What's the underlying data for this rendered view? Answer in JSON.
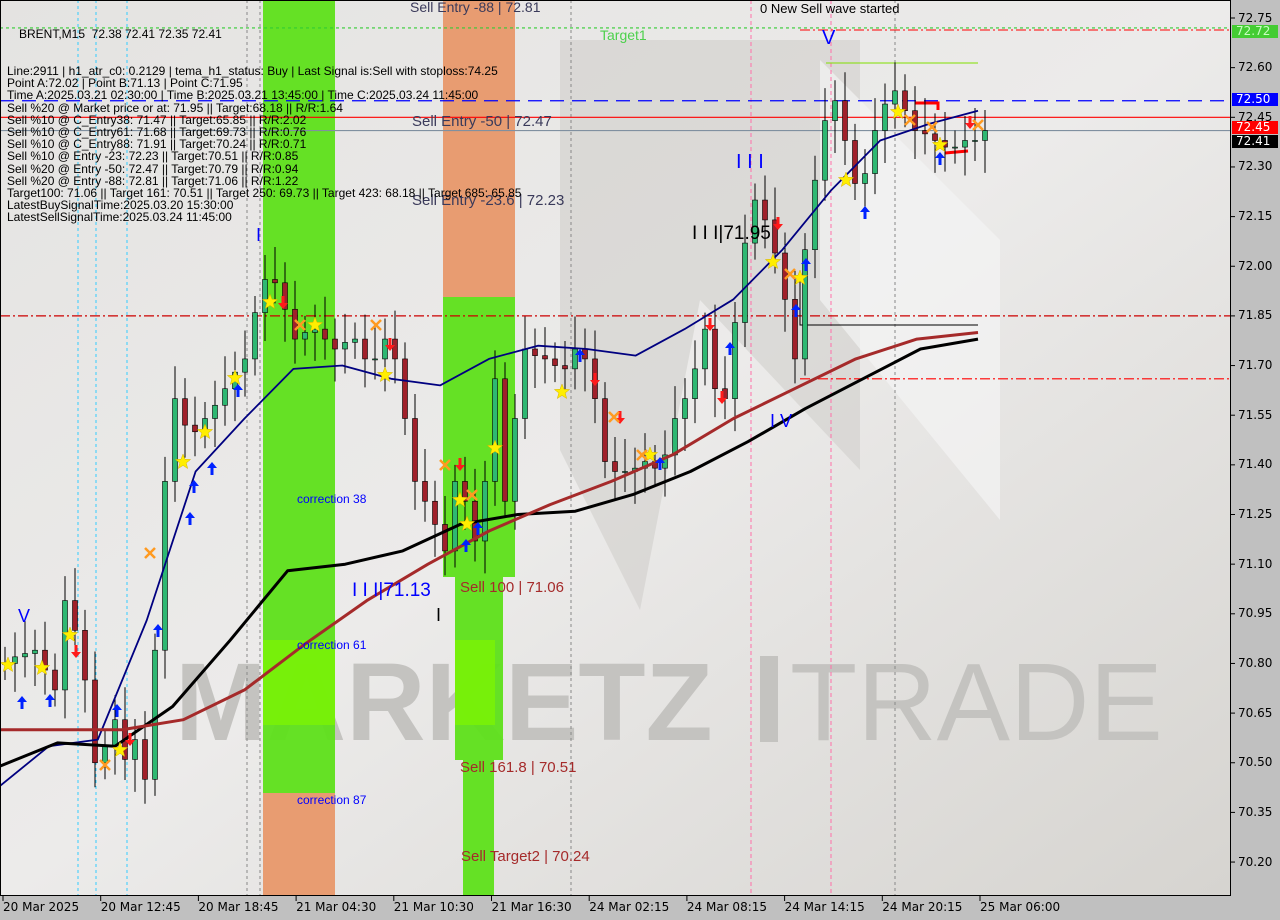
{
  "header": {
    "title": "BRENT,M15  72.38 72.41 72.35 72.41",
    "lines": [
      "Line:2911 | h1_atr_c0: 0.2129 | tema_h1_status: Buy | Last Signal is:Sell with stoploss:74.25",
      "Point A:72.02 | Point B:71.13 | Point C:71.95",
      "Time A:2025.03.21 02:30:00 | Time B:2025.03.21 13:45:00 | Time C:2025.03.24 11:45:00",
      "Sell %20 @ Market price or at: 71.95 || Target:68.18 || R/R:1.64",
      "Sell %10 @ C_Entry38: 71.47 || Target:65.85 || R/R:2.02",
      "Sell %10 @ C_Entry61: 71.68 || Target:69.73 || R/R:0.76",
      "Sell %10 @ C_Entry88: 71.91 || Target:70.24 || R/R:0.71",
      "Sell %10 @ Entry -23: 72.23 || Target:70.51 || R/R:0.85",
      "Sell %20 @ Entry -50: 72.47 || Target:70.79 || R/R:0.94",
      "Sell %20 @ Entry -88: 72.81 || Target:71.06 || R/R:1.22",
      "Target100: 71.06 || Target 161: 70.51 || Target 250: 69.73 || Target 423: 68.18 || Target 685: 65.85",
      "LatestBuySignalTime:2025.03.20 15:30:00",
      "LatestSellSignalTime:2025.03.24 11:45:00"
    ]
  },
  "annotations": {
    "sell_entry_88": "Sell Entry -88 | 72.81",
    "target1": "Target1",
    "sell_entry_50": "Sell Entry -50 | 72.47",
    "sell_entry_236": "Sell Entry -23.6 | 72.23",
    "wave_started": "0 New Sell wave started",
    "wave_v_top": "V",
    "wave_iii_blue": "I I I",
    "wave_iii_point": "I I I|71.95",
    "wave_i_blue": "I",
    "wave_v_left": "V",
    "wave_iv": "I V",
    "wave_iii_b": "I I I|71.13",
    "wave_i_black": "I",
    "sell_100": "Sell 100 | 71.06",
    "sell_1618": "Sell 161.8 | 70.51",
    "sell_target2": "Sell Target2 | 70.24",
    "correction_38": "correction 38",
    "correction_61": "correction 61",
    "correction_87": "correction 87",
    "watermark": "MARKETZ TRADE"
  },
  "price_tags": [
    {
      "value": "72.72",
      "bg": "#44cc33",
      "fg": "#c8ffc0"
    },
    {
      "value": "72.50",
      "bg": "#0000ff",
      "fg": "#ffffff"
    },
    {
      "value": "72.45",
      "bg": "#ff0000",
      "fg": "#ffffff"
    },
    {
      "value": "72.41",
      "bg": "#000000",
      "fg": "#ffffff"
    }
  ],
  "chart_data": {
    "type": "candlestick",
    "symbol": "BRENT",
    "timeframe": "M15",
    "ylim": [
      70.15,
      72.8
    ],
    "y_ticks": [
      "72.75",
      "72.60",
      "72.45",
      "72.30",
      "72.15",
      "72.00",
      "71.85",
      "71.70",
      "71.55",
      "71.40",
      "71.25",
      "71.10",
      "70.95",
      "70.80",
      "70.65",
      "70.50",
      "70.35",
      "70.20"
    ],
    "x_ticks": [
      "20 Mar 2025",
      "20 Mar 12:45",
      "20 Mar 18:45",
      "21 Mar 04:30",
      "21 Mar 10:30",
      "21 Mar 16:30",
      "24 Mar 02:15",
      "24 Mar 08:15",
      "24 Mar 14:15",
      "24 Mar 20:15",
      "25 Mar 06:00"
    ],
    "closes": [
      70.8,
      70.82,
      70.83,
      70.84,
      70.78,
      70.72,
      70.99,
      70.9,
      70.75,
      70.5,
      70.55,
      70.63,
      70.51,
      70.57,
      70.45,
      70.84,
      71.35,
      71.6,
      71.52,
      71.5,
      71.54,
      71.58,
      71.63,
      71.68,
      71.72,
      71.86,
      71.96,
      71.95,
      71.87,
      71.78,
      71.8,
      71.81,
      71.78,
      71.75,
      71.77,
      71.78,
      71.72,
      71.72,
      71.78,
      71.72,
      71.54,
      71.35,
      71.29,
      71.22,
      71.14,
      71.35,
      71.29,
      71.17,
      71.35,
      71.66,
      71.29,
      71.54,
      71.75,
      71.73,
      71.72,
      71.7,
      71.69,
      71.75,
      71.72,
      71.6,
      71.41,
      71.38,
      71.38,
      71.39,
      71.41,
      71.39,
      71.43,
      71.54,
      71.6,
      71.69,
      71.81,
      71.63,
      71.6,
      71.83,
      72.07,
      72.2,
      72.14,
      72.04,
      71.9,
      71.72,
      72.05,
      72.26,
      72.44,
      72.5,
      72.38,
      72.25,
      72.28,
      72.41,
      72.49,
      72.53,
      72.47,
      72.41,
      72.4,
      72.38,
      72.36,
      72.36,
      72.38,
      72.38,
      72.41
    ],
    "moving_averages": [
      {
        "color": "#000080",
        "values": [
          70.43,
          70.55,
          70.57,
          70.93,
          71.38,
          71.54,
          71.69,
          71.7,
          71.66,
          71.64,
          71.72,
          71.76,
          71.75,
          71.73,
          71.81,
          71.9,
          72.05,
          72.23,
          72.38,
          72.43,
          72.47
        ]
      },
      {
        "color": "#000000",
        "values": [
          70.49,
          70.56,
          70.55,
          70.67,
          70.87,
          71.08,
          71.1,
          71.14,
          71.22,
          71.25,
          71.26,
          71.31,
          71.38,
          71.47,
          71.57,
          71.66,
          71.75,
          71.78
        ]
      },
      {
        "color": "#a52a2a",
        "values": [
          70.6,
          70.6,
          70.6,
          70.63,
          70.72,
          70.86,
          70.99,
          71.1,
          71.2,
          71.28,
          71.35,
          71.43,
          71.54,
          71.63,
          71.72,
          71.78,
          71.8
        ]
      }
    ],
    "levels": [
      {
        "price": 72.72,
        "color": "#33cc33",
        "style": "dotted"
      },
      {
        "price": 72.5,
        "color": "#0000ff",
        "style": "dashed"
      },
      {
        "price": 72.45,
        "color": "#ff0000",
        "style": "solid"
      },
      {
        "price": 72.41,
        "color": "#8090a0",
        "style": "solid"
      },
      {
        "price": 71.85,
        "color": "#cc0000",
        "style": "dashdot"
      },
      {
        "price": 71.66,
        "color": "#ff0000",
        "style": "dashdot"
      }
    ],
    "colors": {
      "bull": "#2eb872",
      "bear": "#a0202a",
      "background": "#dcdad6",
      "zone_green": "#5ee01a",
      "zone_orange": "#e8986a"
    },
    "grid": false
  }
}
